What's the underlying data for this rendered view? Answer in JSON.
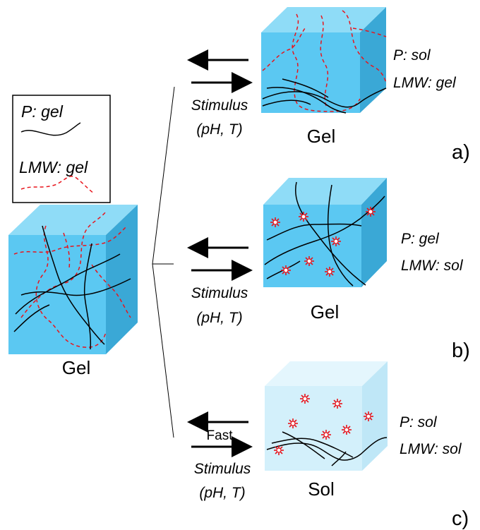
{
  "legend": {
    "polymer_label": "P: gel",
    "lmw_label": "LMW: gel"
  },
  "initial": {
    "state_label": "Gel"
  },
  "branches": [
    {
      "letter": "a)",
      "result_label": "Gel",
      "stimulus": "Stimulus",
      "stimulus_detail": "(pH, T)",
      "fast_label": "",
      "p_state": "P: sol",
      "lmw_state": "LMW: gel"
    },
    {
      "letter": "b)",
      "result_label": "Gel",
      "stimulus": "Stimulus",
      "stimulus_detail": "(pH, T)",
      "fast_label": "",
      "p_state": "P: gel",
      "lmw_state": "LMW: sol"
    },
    {
      "letter": "c)",
      "result_label": "Sol",
      "stimulus": "Stimulus",
      "stimulus_detail": "(pH, T)",
      "fast_label": "Fast",
      "p_state": "P: sol",
      "lmw_state": "LMW: sol"
    }
  ],
  "colors": {
    "gel_front": "#5bc8f2",
    "gel_top": "#8fdcf7",
    "gel_side": "#3aa8d6",
    "sol_front": "#d3f0fb",
    "sol_top": "#e4f6fd",
    "sol_side": "#bfe7f7",
    "polymer_fiber": "#000000",
    "lmw_fiber": "#e8141c",
    "micelle": "#e8141c"
  }
}
